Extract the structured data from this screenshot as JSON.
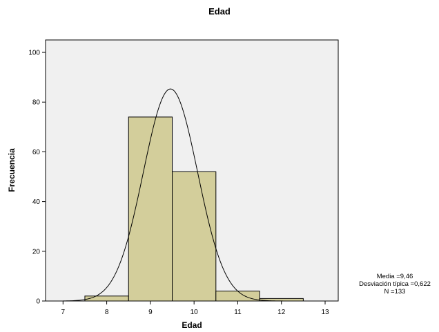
{
  "chart_data": {
    "type": "bar",
    "title": "Edad",
    "xlabel": "Edad",
    "ylabel": "Frecuencia",
    "xlim": [
      6.6,
      13.3
    ],
    "ylim": [
      0,
      105
    ],
    "x_ticks": [
      7,
      8,
      9,
      10,
      11,
      12,
      13
    ],
    "y_ticks": [
      0,
      20,
      40,
      60,
      80,
      100
    ],
    "bins": [
      {
        "start": 7.5,
        "end": 8.5,
        "value": 2
      },
      {
        "start": 8.5,
        "end": 9.5,
        "value": 74
      },
      {
        "start": 9.5,
        "end": 10.5,
        "value": 52
      },
      {
        "start": 10.5,
        "end": 11.5,
        "value": 4
      },
      {
        "start": 11.5,
        "end": 12.5,
        "value": 1
      }
    ],
    "normal_curve": {
      "mean": 9.46,
      "sd": 0.622,
      "n": 133,
      "bin_width": 1
    },
    "grid": false,
    "colors": {
      "plot_bg": "#f0f0f0",
      "bar_fill": "#d3ce9b",
      "bar_stroke": "#000000"
    }
  },
  "stats": {
    "mean_label": "Media =9,46",
    "sd_label": "Desviación típica =0,622",
    "n_label": "N =133"
  }
}
